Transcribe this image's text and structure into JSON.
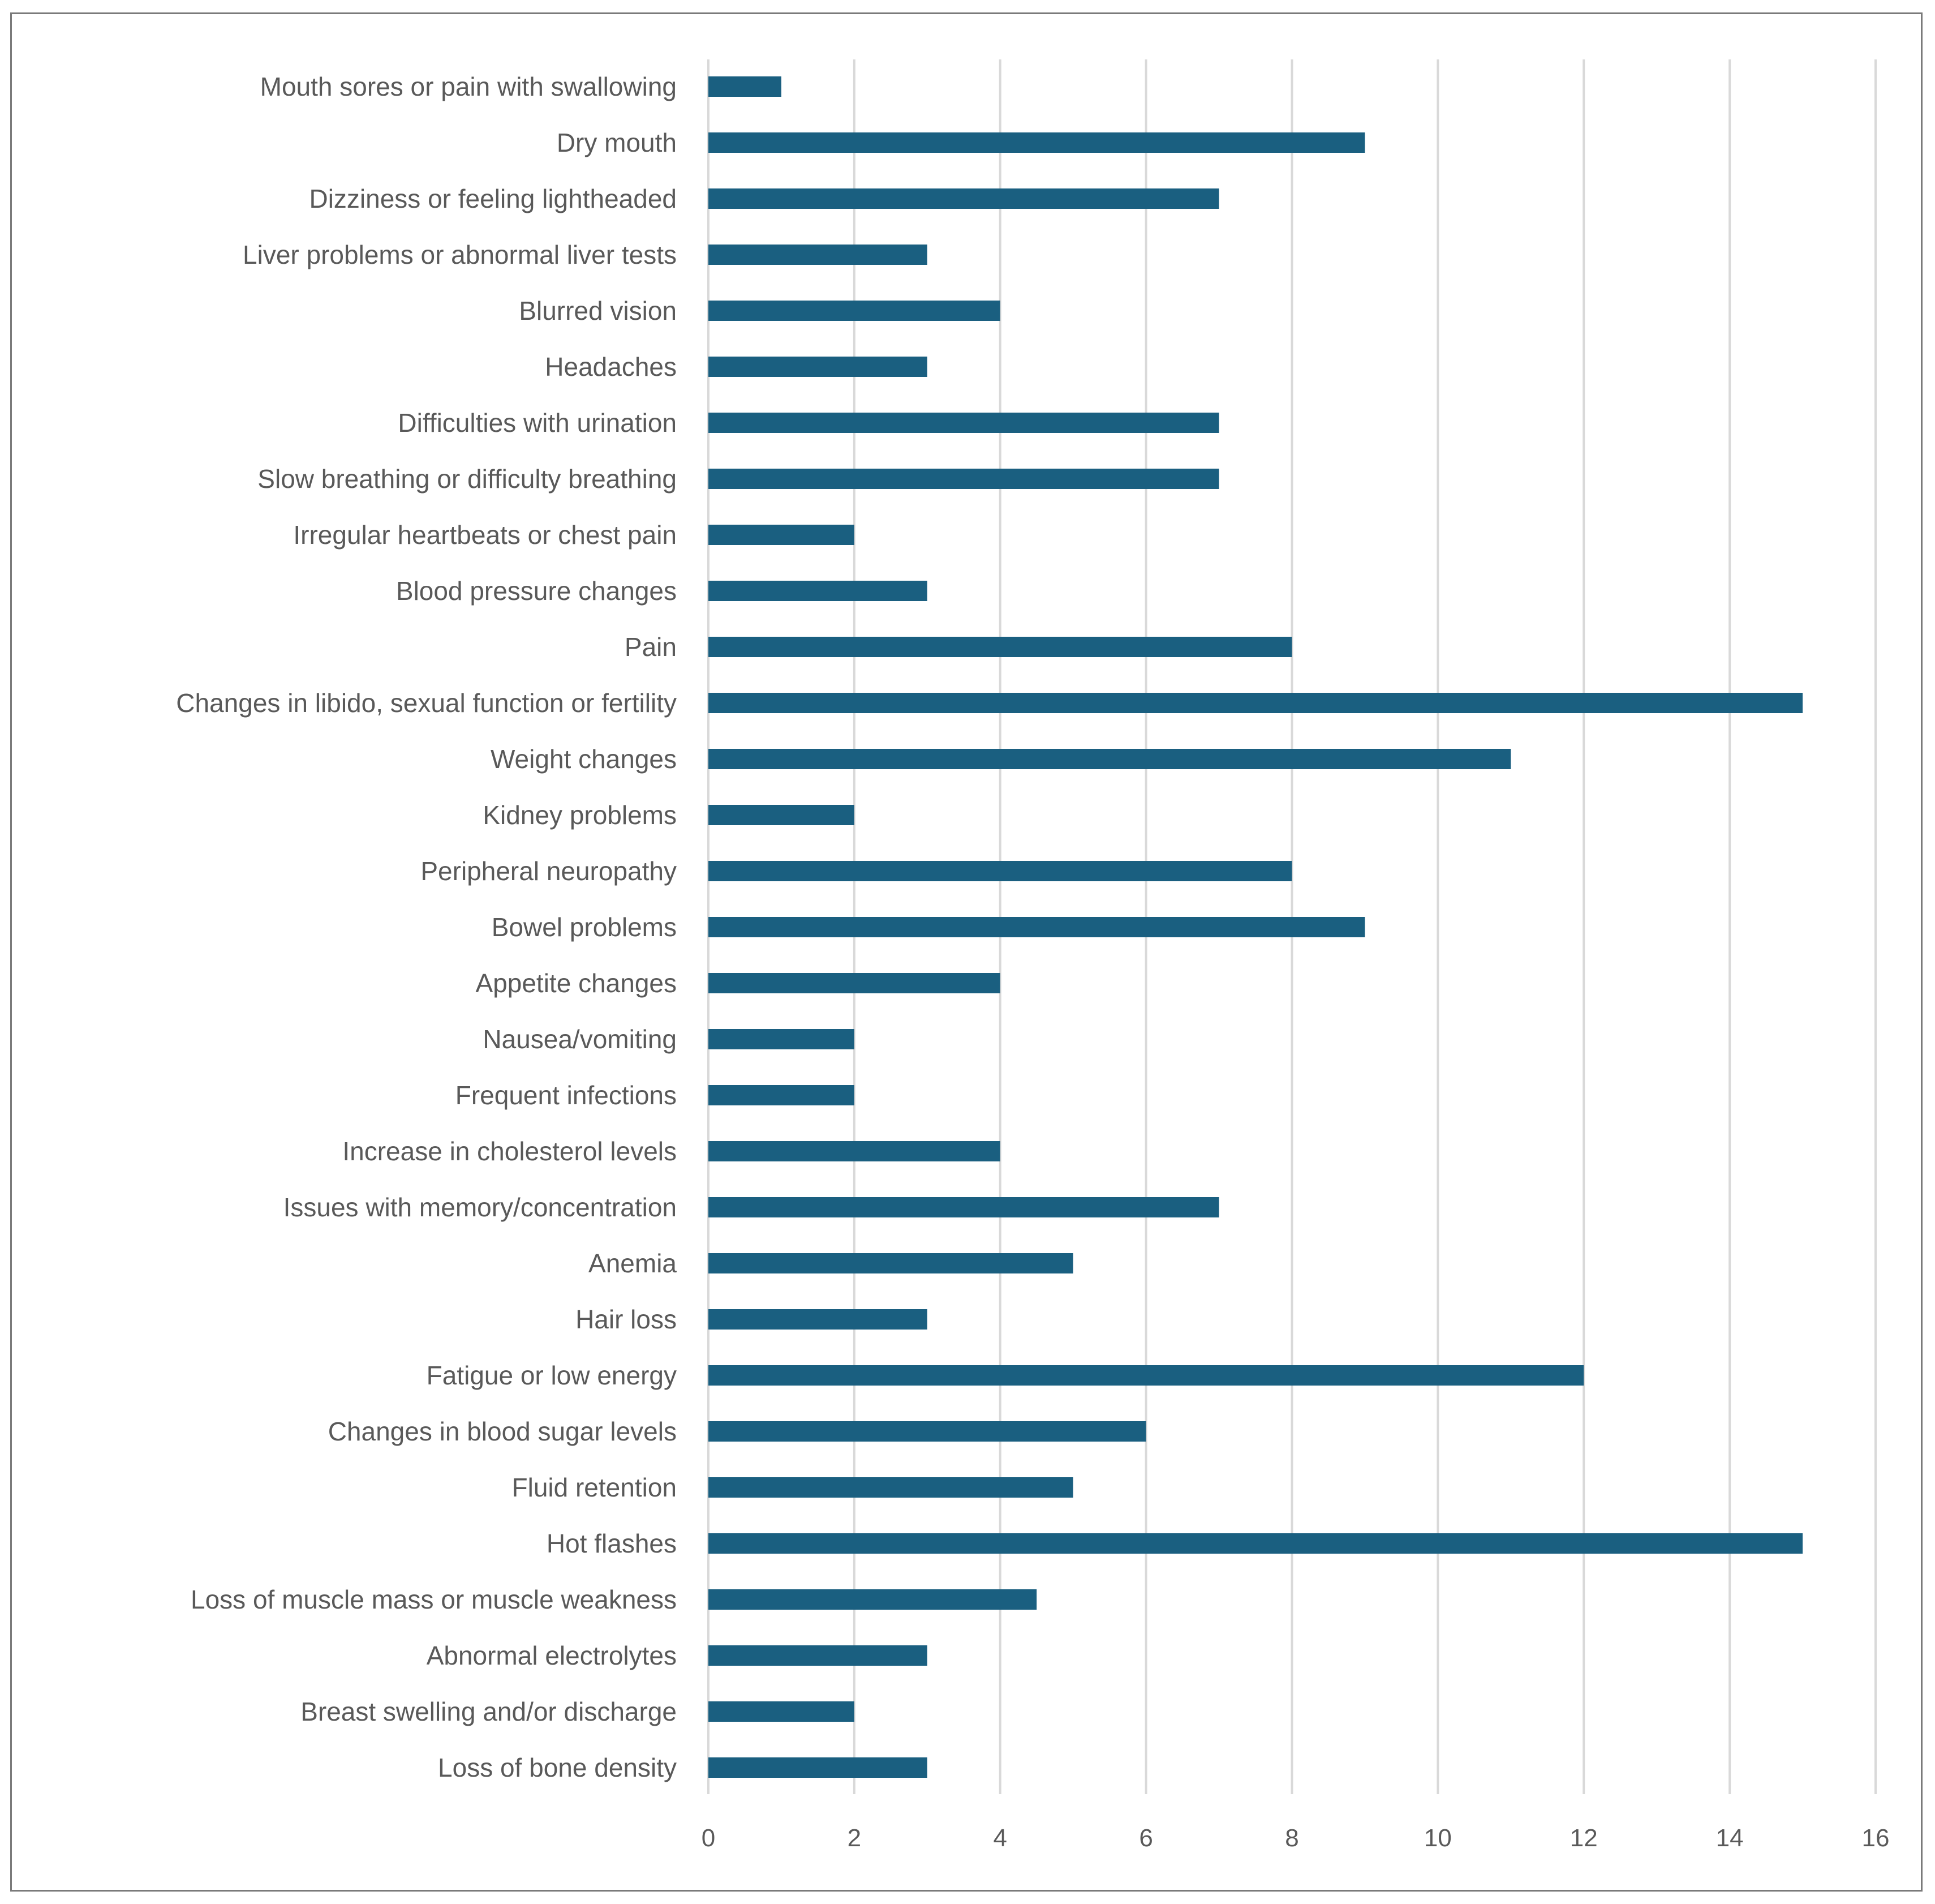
{
  "chart_data": {
    "type": "bar",
    "orientation": "horizontal",
    "title": "",
    "xlabel": "",
    "ylabel": "",
    "xlim": [
      0,
      16
    ],
    "x_ticks": [
      "0",
      "2",
      "4",
      "6",
      "8",
      "10",
      "12",
      "14",
      "16"
    ],
    "grid": true,
    "bar_color": "#1a5f80",
    "categories": [
      "Mouth sores or pain with swallowing",
      "Dry mouth",
      "Dizziness or feeling lightheaded",
      "Liver problems or abnormal liver tests",
      "Blurred vision",
      "Headaches",
      "Difficulties with urination",
      "Slow breathing or difficulty breathing",
      "Irregular heartbeats or chest pain",
      "Blood pressure changes",
      "Pain",
      "Changes in libido, sexual function or fertility",
      "Weight changes",
      "Kidney problems",
      "Peripheral neuropathy",
      "Bowel problems",
      "Appetite changes",
      "Nausea/vomiting",
      "Frequent infections",
      "Increase in cholesterol levels",
      "Issues with memory/concentration",
      "Anemia",
      "Hair loss",
      "Fatigue or low energy",
      "Changes in blood sugar levels",
      "Fluid retention",
      "Hot flashes",
      "Loss of muscle mass or muscle weakness",
      "Abnormal electrolytes",
      "Breast swelling and/or discharge",
      "Loss of bone density"
    ],
    "values": [
      1,
      9,
      7,
      3,
      4,
      3,
      7,
      7,
      2,
      3,
      8,
      15,
      11,
      2,
      8,
      9,
      4,
      2,
      2,
      4,
      7,
      5,
      3,
      12,
      6,
      5,
      15,
      4.5,
      3,
      2,
      3
    ]
  }
}
